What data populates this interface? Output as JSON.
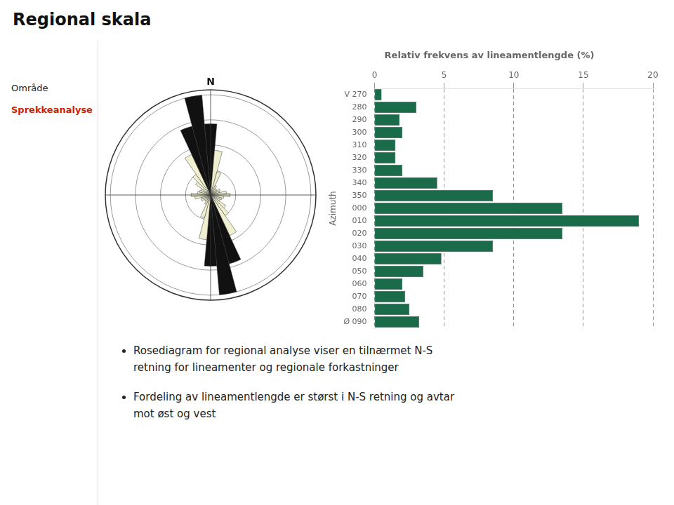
{
  "title": "Regional skala",
  "annotations": [
    {
      "text": "Område"
    },
    {
      "text": "Sprekkeanalyse",
      "color": "#cc2200"
    },
    {
      "text": "Rosediagram for regional analyse viser en tilnærmet N-S\nretning for lineamenter og regionale forkastninger",
      "marker": "bullet"
    },
    {
      "text": "Fordeling av lineamentlengde er størst i N-S retning og avtar\nmot øst og vest",
      "marker": "bullet"
    }
  ],
  "chart_data": [
    {
      "type": "rose",
      "annotations": [
        "N"
      ],
      "categories": [
        null,
        null,
        null,
        null,
        null,
        null,
        null,
        null,
        null,
        null,
        null,
        null,
        null,
        null,
        null,
        null,
        null,
        null,
        null,
        null,
        null,
        null,
        null,
        null,
        null,
        null,
        null,
        null,
        null,
        null,
        null,
        null,
        null,
        null,
        null,
        null
      ],
      "values": [
        0.7105263157894737,
        0.4473684210526316,
        0.23684210526315788,
        0.10526315789473684,
        0.07894736842105263,
        0.07894736842105263,
        0.10526315789473684,
        0.09473684210526316,
        0.15789473684210525,
        0.19473684210526315,
        0.13157894736842105,
        0.11578947368421053,
        0.10526315789473684,
        0.18421052631578946,
        0.25263157894736843,
        0.4473684210526316,
        0.7105263157894737,
        1.0,
        0.7105263157894737,
        0.4473684210526316,
        0.23684210526315788,
        0.10526315789473684,
        0.07894736842105263,
        0.07894736842105263,
        0.10526315789473684,
        0.09473684210526316,
        0.15789473684210525,
        0.19473684210526315,
        0.13157894736842105,
        0.11578947368421053,
        0.10526315789473684,
        0.18421052631578946,
        0.25263157894736843,
        0.4473684210526316,
        0.7105263157894737,
        1.0
      ],
      "colors": [
        "#111111",
        "#f0f0d0",
        "#f0f0d0",
        "#f0f0d0",
        "#f0f0d0",
        "#f0f0d0",
        "#f0f0d0",
        "#f0f0d0",
        "#f0f0d0",
        "#f0f0d0",
        "#f0f0d0",
        "#f0f0d0",
        "#f0f0d0",
        "#f0f0d0",
        "#f0f0d0",
        "#f0f0d0",
        "#111111",
        "#111111",
        "#111111",
        "#f0f0d0",
        "#f0f0d0",
        "#f0f0d0",
        "#f0f0d0",
        "#f0f0d0",
        "#f0f0d0",
        "#f0f0d0",
        "#f0f0d0",
        "#f0f0d0",
        "#f0f0d0",
        "#f0f0d0",
        "#f0f0d0",
        "#f0f0d0",
        "#f0f0d0",
        "#f0f0d0",
        "#111111",
        "#111111"
      ],
      "ylim": [
        0,
        1.05
      ],
      "yticks": [
        0.25,
        0.5,
        0.75,
        1
      ],
      "tick_labels": false,
      "grid": true
    },
    {
      "type": "bar",
      "orientation": "horizontal",
      "title": "Relativ frekvens av lineamentlengde (%)",
      "ylabel": "Azimuth",
      "categories": [
        "V 270",
        "280",
        "290",
        "300",
        "310",
        "320",
        "330",
        "340",
        "350",
        "000",
        "010",
        "020",
        "030",
        "040",
        "050",
        "060",
        "070",
        "080",
        "Ø 090"
      ],
      "values": [
        0.5,
        3.0,
        1.8,
        2.0,
        1.5,
        1.5,
        2.0,
        4.5,
        8.5,
        13.5,
        19.0,
        13.5,
        8.5,
        4.8,
        3.5,
        2.0,
        2.2,
        2.5,
        3.2
      ],
      "color": "#1a6b4a",
      "xlim": [
        0,
        20
      ],
      "xticks": [
        0,
        5,
        10,
        15,
        20
      ],
      "grid": true
    }
  ]
}
